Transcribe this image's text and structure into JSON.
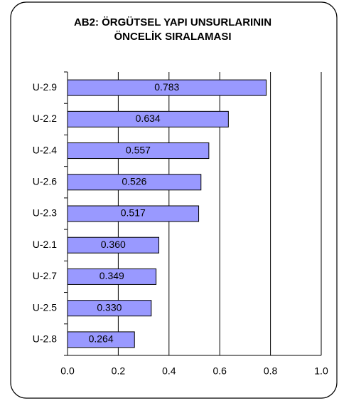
{
  "chart_data": {
    "type": "bar",
    "orientation": "horizontal",
    "title": [
      "AB2: ÖRGÜTSEL YAPI UNSURLARININ",
      "ÖNCELİK SIRALAMASI"
    ],
    "categories": [
      "U-2.9",
      "U-2.2",
      "U-2.4",
      "U-2.6",
      "U-2.3",
      "U-2.1",
      "U-2.7",
      "U-2.5",
      "U-2.8"
    ],
    "values": [
      0.783,
      0.634,
      0.557,
      0.526,
      0.517,
      0.36,
      0.349,
      0.33,
      0.264
    ],
    "value_labels": [
      "0.783",
      "0.634",
      "0.557",
      "0.526",
      "0.517",
      "0.360",
      "0.349",
      "0.330",
      "0.264"
    ],
    "color": "#9999ff",
    "xlim": [
      0,
      1
    ],
    "xticks": [
      {
        "value": 0,
        "label": "0.0"
      },
      0.2,
      0.4,
      0.6,
      0.8,
      {
        "value": 1,
        "label": "1.0"
      }
    ],
    "grid": true
  }
}
